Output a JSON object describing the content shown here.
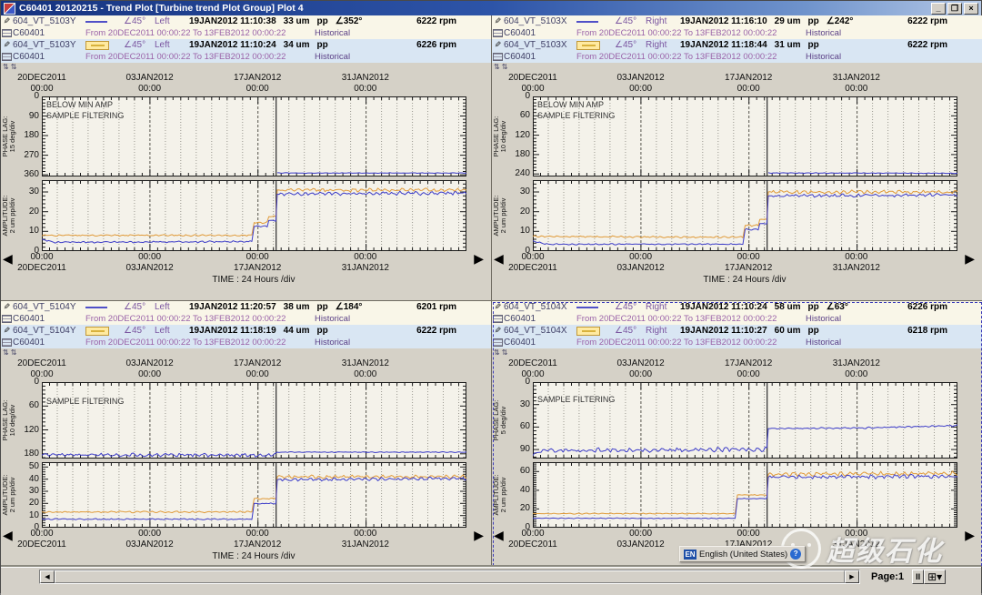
{
  "window": {
    "title": "C60401 20120215 - Trend Plot [Turbine trend Plot Group] Plot 4",
    "controls": {
      "minimize": "_",
      "restore": "❐",
      "close": "×"
    }
  },
  "statusbar": {
    "scroll_left": "◀",
    "scroll_right": "▶",
    "page_label": "Page:1",
    "pause_label": "II",
    "layout_icon": "⊞",
    "layout_dropdown": "▾"
  },
  "language_bar": {
    "abbr": "EN",
    "label": "English (United States)",
    "help": "?"
  },
  "watermark": {
    "text": "超级石化"
  },
  "colors": {
    "direct": "#3c3cc8",
    "filtered": "#e09a38",
    "plot_bg": "#f4f2ea",
    "grid_minor": "#9a988f",
    "grid_major": "#55534a",
    "cursor": "#2a2a2a",
    "axis": "#1a1a1a",
    "annotation": "#333333"
  },
  "time_axis": {
    "dates": [
      "20DEC2011",
      "03JAN2012",
      "17JAN2012",
      "31JAN2012"
    ],
    "time": "00:00",
    "positions_pct": [
      0,
      25.45,
      50.9,
      76.36
    ],
    "caption": "TIME : 24 Hours /div",
    "span_days": 55,
    "cursor_day": 30.35
  },
  "quadrants": [
    {
      "id": "top-left",
      "selected": false,
      "channels": [
        {
          "name": "604_VT_5103Y",
          "legend": "line",
          "angle": "∠45°",
          "side": "Left",
          "timestamp": "19JAN2012 11:10:38",
          "value": "33 um",
          "unit": "pp",
          "phase": "∠352°",
          "rpm": "6222 rpm",
          "machine": "C60401",
          "range": "From 20DEC2011 00:00:22 To 13FEB2012 00:00:22",
          "mode": "Historical"
        },
        {
          "name": "604_VT_5103Y",
          "legend": "box",
          "angle": "∠45°",
          "side": "Left",
          "timestamp": "19JAN2012 11:10:24",
          "value": "34 um",
          "unit": "pp",
          "phase": "",
          "rpm": "6226 rpm",
          "machine": "C60401",
          "range": "From 20DEC2011 00:00:22 To 13FEB2012 00:00:22",
          "mode": "Historical"
        }
      ],
      "phase_plot": {
        "type": "line",
        "ylabel": "PHASE LAG:",
        "ydiv": "15 deg/div",
        "yticks": [
          0,
          90,
          180,
          270,
          360
        ],
        "ymin": 0,
        "ymax": 368,
        "minor": 15,
        "invert": true,
        "ann_y0": 12,
        "annotations": [
          "BELOW MIN AMP",
          "SAMPLE FILTERING"
        ],
        "series": [
          {
            "color_key": "direct",
            "noise": 1.5,
            "noise_after": 1.5,
            "points": [
              [
                30.5,
                352
              ],
              [
                55,
                352
              ]
            ]
          }
        ]
      },
      "amp_plot": {
        "type": "line",
        "ylabel": "AMPLITUDE:",
        "ydiv": "2 um pp/div",
        "yticks": [
          0,
          10,
          20,
          30
        ],
        "ymin": 0,
        "ymax": 36,
        "minor": 2,
        "invert": false,
        "ann_y0": 12,
        "annotations": [],
        "series": [
          {
            "color_key": "filtered",
            "noise": 0.5,
            "noise_after": 1.1,
            "points": [
              [
                0,
                8
              ],
              [
                27.2,
                8
              ],
              [
                27.5,
                14.5
              ],
              [
                29.2,
                14.5
              ],
              [
                29.4,
                17.5
              ],
              [
                30.3,
                17.5
              ],
              [
                30.5,
                31
              ],
              [
                55,
                31
              ]
            ]
          },
          {
            "color_key": "direct",
            "noise": 0.5,
            "noise_after": 1.1,
            "points": [
              [
                0,
                6
              ],
              [
                1.5,
                4.5
              ],
              [
                27.2,
                4.8
              ],
              [
                27.5,
                12.5
              ],
              [
                29.2,
                12.5
              ],
              [
                29.4,
                15.5
              ],
              [
                30.3,
                15.5
              ],
              [
                30.5,
                29
              ],
              [
                55,
                29.5
              ]
            ]
          }
        ]
      }
    },
    {
      "id": "top-right",
      "selected": false,
      "channels": [
        {
          "name": "604_VT_5103X",
          "legend": "line",
          "angle": "∠45°",
          "side": "Right",
          "timestamp": "19JAN2012 11:16:10",
          "value": "29 um",
          "unit": "pp",
          "phase": "∠242°",
          "rpm": "6222 rpm",
          "machine": "C60401",
          "range": "From 20DEC2011 00:00:22 To 13FEB2012 00:00:22",
          "mode": "Historical"
        },
        {
          "name": "604_VT_5103X",
          "legend": "box",
          "angle": "∠45°",
          "side": "Right",
          "timestamp": "19JAN2012 11:18:44",
          "value": "31 um",
          "unit": "pp",
          "phase": "",
          "rpm": "6222 rpm",
          "machine": "C60401",
          "range": "From 20DEC2011 00:00:22 To 13FEB2012 00:00:22",
          "mode": "Historical"
        }
      ],
      "phase_plot": {
        "type": "line",
        "ylabel": "PHASE LAG:",
        "ydiv": "10 deg/div",
        "yticks": [
          0,
          60,
          120,
          180,
          240
        ],
        "ymin": 0,
        "ymax": 248,
        "minor": 10,
        "invert": true,
        "ann_y0": 12,
        "annotations": [
          "BELOW MIN AMP",
          "SAMPLE FILTERING"
        ],
        "series": [
          {
            "color_key": "direct",
            "noise": 1.2,
            "noise_after": 1.2,
            "points": [
              [
                30.5,
                237
              ],
              [
                55,
                238
              ]
            ]
          }
        ]
      },
      "amp_plot": {
        "type": "line",
        "ylabel": "AMPLITUDE:",
        "ydiv": "2 um pp/div",
        "yticks": [
          0,
          10,
          20,
          30
        ],
        "ymin": 0,
        "ymax": 36,
        "minor": 2,
        "invert": false,
        "ann_y0": 12,
        "annotations": [],
        "series": [
          {
            "color_key": "filtered",
            "noise": 0.5,
            "noise_after": 1.0,
            "points": [
              [
                0,
                7.5
              ],
              [
                27.2,
                7
              ],
              [
                27.5,
                13
              ],
              [
                29.2,
                13
              ],
              [
                29.4,
                16
              ],
              [
                30.3,
                16
              ],
              [
                30.5,
                30
              ],
              [
                55,
                30
              ]
            ]
          },
          {
            "color_key": "direct",
            "noise": 0.4,
            "noise_after": 1.0,
            "points": [
              [
                0,
                5
              ],
              [
                2,
                3.5
              ],
              [
                27.2,
                3.5
              ],
              [
                27.5,
                11
              ],
              [
                29.2,
                11
              ],
              [
                29.4,
                14
              ],
              [
                30.3,
                14
              ],
              [
                30.5,
                28
              ],
              [
                55,
                28.5
              ]
            ]
          }
        ]
      }
    },
    {
      "id": "bottom-left",
      "selected": false,
      "channels": [
        {
          "name": "604_VT_5104Y",
          "legend": "line",
          "angle": "∠45°",
          "side": "Left",
          "timestamp": "19JAN2012 11:20:57",
          "value": "38 um",
          "unit": "pp",
          "phase": "∠184°",
          "rpm": "6201 rpm",
          "machine": "C60401",
          "range": "From 20DEC2011 00:00:22 To 13FEB2012 00:00:22",
          "mode": "Historical"
        },
        {
          "name": "604_VT_5104Y",
          "legend": "box",
          "angle": "∠45°",
          "side": "Left",
          "timestamp": "19JAN2012 11:18:19",
          "value": "44 um",
          "unit": "pp",
          "phase": "",
          "rpm": "6222 rpm",
          "machine": "C60401",
          "range": "From 20DEC2011 00:00:22 To 13FEB2012 00:00:22",
          "mode": "Historical"
        }
      ],
      "phase_plot": {
        "type": "line",
        "ylabel": "PHASE LAG:",
        "ydiv": "10 deg/div",
        "yticks": [
          0,
          60,
          120,
          180
        ],
        "ymin": 0,
        "ymax": 192,
        "minor": 10,
        "invert": true,
        "ann_y0": 24,
        "annotations": [
          "SAMPLE FILTERING"
        ],
        "series": [
          {
            "color_key": "direct",
            "noise": 5,
            "noise_after": 1.2,
            "points": [
              [
                0,
                183
              ],
              [
                30.3,
                183
              ],
              [
                30.5,
                176
              ],
              [
                55,
                176
              ]
            ]
          }
        ]
      },
      "amp_plot": {
        "type": "line",
        "ylabel": "AMPLITUDE:",
        "ydiv": "2 um pp/div",
        "yticks": [
          0,
          10,
          20,
          30,
          40,
          50
        ],
        "ymin": 0,
        "ymax": 54,
        "minor": 2,
        "invert": false,
        "ann_y0": 12,
        "annotations": [],
        "series": [
          {
            "color_key": "filtered",
            "noise": 0.8,
            "noise_after": 1.6,
            "points": [
              [
                0,
                13
              ],
              [
                27.2,
                13
              ],
              [
                27.5,
                24
              ],
              [
                30.3,
                24
              ],
              [
                30.5,
                42
              ],
              [
                55,
                42
              ]
            ]
          },
          {
            "color_key": "direct",
            "noise": 0.6,
            "noise_after": 1.6,
            "points": [
              [
                0,
                7
              ],
              [
                27.2,
                7
              ],
              [
                27.5,
                20
              ],
              [
                30.3,
                20
              ],
              [
                30.5,
                39.5
              ],
              [
                55,
                40.5
              ]
            ]
          }
        ]
      }
    },
    {
      "id": "bottom-right",
      "selected": true,
      "channels": [
        {
          "name": "604_VT_5104X",
          "legend": "line",
          "angle": "∠45°",
          "side": "Right",
          "timestamp": "19JAN2012 11:10:24",
          "value": "58 um",
          "unit": "pp",
          "phase": "∠63°",
          "rpm": "6226 rpm",
          "machine": "C60401",
          "range": "From 20DEC2011 00:00:22 To 13FEB2012 00:00:22",
          "mode": "Historical"
        },
        {
          "name": "604_VT_5104X",
          "legend": "box",
          "angle": "∠45°",
          "side": "Right",
          "timestamp": "19JAN2012 11:10:27",
          "value": "60 um",
          "unit": "pp",
          "phase": "",
          "rpm": "6218 rpm",
          "machine": "C60401",
          "range": "From 20DEC2011 00:00:22 To 13FEB2012 00:00:22",
          "mode": "Historical"
        }
      ],
      "phase_plot": {
        "type": "line",
        "ylabel": "PHASE LAG:",
        "ydiv": "5 deg/div",
        "yticks": [
          0,
          30,
          60,
          90
        ],
        "ymin": 0,
        "ymax": 102,
        "minor": 5,
        "invert": true,
        "ann_y0": 22,
        "annotations": [
          "SAMPLE FILTERING"
        ],
        "series": [
          {
            "color_key": "direct",
            "noise": 3.5,
            "noise_after": 1.2,
            "points": [
              [
                0,
                96
              ],
              [
                1.5,
                91
              ],
              [
                30.3,
                90
              ],
              [
                30.5,
                62
              ],
              [
                44,
                61
              ],
              [
                55,
                58
              ]
            ]
          }
        ]
      },
      "amp_plot": {
        "type": "line",
        "ylabel": "AMPLITUDE:",
        "ydiv": "2 um pp/div",
        "yticks": [
          0,
          20,
          40,
          60
        ],
        "ymin": 0,
        "ymax": 70,
        "minor": 2,
        "invert": false,
        "ann_y0": 12,
        "annotations": [],
        "series": [
          {
            "color_key": "filtered",
            "noise": 0.6,
            "noise_after": 2.6,
            "points": [
              [
                0,
                15
              ],
              [
                26.2,
                15
              ],
              [
                26.5,
                35
              ],
              [
                30.3,
                35
              ],
              [
                30.5,
                57
              ],
              [
                55,
                58
              ]
            ]
          },
          {
            "color_key": "direct",
            "noise": 0.5,
            "noise_after": 2.6,
            "points": [
              [
                0,
                10
              ],
              [
                26.2,
                10
              ],
              [
                26.5,
                31
              ],
              [
                30.3,
                31
              ],
              [
                30.5,
                54
              ],
              [
                55,
                55
              ]
            ]
          }
        ]
      }
    }
  ]
}
